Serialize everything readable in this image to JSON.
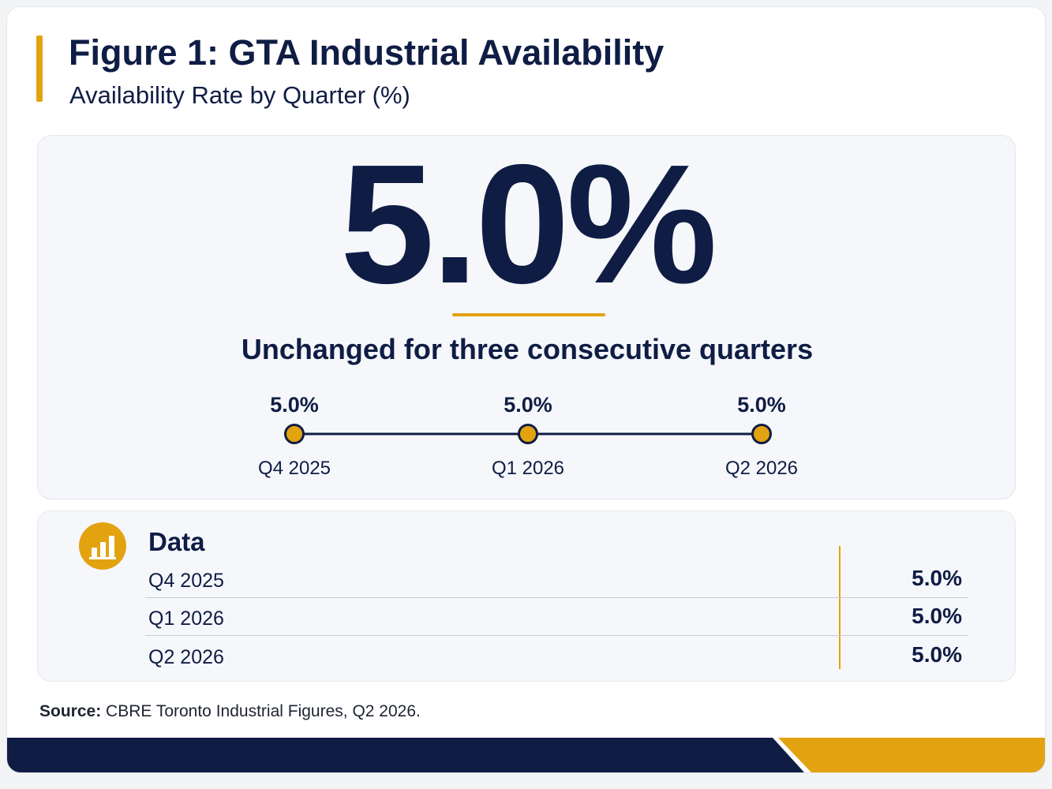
{
  "header": {
    "title": "Figure 1: GTA Industrial Availability",
    "subtitle": "Availability Rate by Quarter (%)"
  },
  "hero": {
    "value": "5.0%",
    "headline": "Unchanged for three consecutive quarters"
  },
  "chart_data": {
    "type": "line",
    "categories": [
      "Q4 2025",
      "Q1 2026",
      "Q2 2026"
    ],
    "values": [
      5.0,
      5.0,
      5.0
    ],
    "value_labels": [
      "5.0%",
      "5.0%",
      "5.0%"
    ],
    "title": "Figure 1: GTA Industrial Availability",
    "subtitle": "Availability Rate by Quarter (%)",
    "colors": {
      "line": "#0f1d45",
      "marker": "#e3a20f"
    }
  },
  "data_table": {
    "title": "Data",
    "icon": "bar-chart-icon",
    "rows": [
      {
        "label": "Q4 2025",
        "value": "5.0%"
      },
      {
        "label": "Q1 2026",
        "value": "5.0%"
      },
      {
        "label": "Q2 2026",
        "value": "5.0%"
      }
    ]
  },
  "source": {
    "label": "Source:",
    "text": " CBRE Toronto Industrial Figures, Q2 2026."
  },
  "colors": {
    "navy": "#0f1d45",
    "gold": "#e3a20f",
    "panel": "#f6f7fa"
  }
}
